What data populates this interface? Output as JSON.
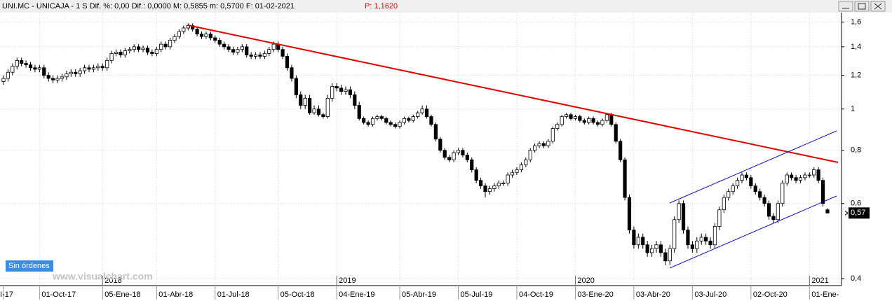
{
  "chart_data": {
    "type": "candlestick",
    "title": "UNI.MC - UNICAJA -  1 S  Dif. %: 0,00  Dif.: 0,0000  M: 0,5855  m: 0,5700  F: 01-02-2021",
    "price_text": "P: 1,1620",
    "button": "Sin órdenes",
    "watermark": "www.visualchart.com",
    "log_scale": true,
    "grid": true,
    "up_color": "#ffffff",
    "down_color": "#000000",
    "trend_color": "#e00000",
    "channel_color": "#1010c0",
    "ylim": [
      0.385,
      1.71
    ],
    "yticks": [
      {
        "value": 0.4,
        "label": "0,4"
      },
      {
        "value": 0.6,
        "label": "0,6"
      },
      {
        "value": 0.8,
        "label": "0,8"
      },
      1,
      {
        "value": 1.2,
        "label": "1,2"
      },
      {
        "value": 1.4,
        "label": "1,4"
      },
      {
        "value": 1.6,
        "label": "1,6"
      }
    ],
    "last_price": {
      "value": 0.57,
      "label": "0,57"
    },
    "categories": [
      "I-17",
      null,
      null,
      null,
      null,
      null,
      null,
      null,
      "01-Oct-17",
      null,
      null,
      null,
      null,
      null,
      null,
      null,
      null,
      null,
      null,
      null,
      null,
      null,
      "05-Ene-18",
      null,
      null,
      null,
      null,
      null,
      null,
      null,
      null,
      null,
      null,
      null,
      "01-Abr-18",
      null,
      null,
      null,
      null,
      null,
      null,
      null,
      null,
      null,
      null,
      null,
      null,
      "01-Jul-18",
      null,
      null,
      null,
      null,
      null,
      null,
      null,
      null,
      null,
      null,
      null,
      null,
      null,
      "05-Oct-18",
      null,
      null,
      null,
      null,
      null,
      null,
      null,
      null,
      null,
      null,
      null,
      null,
      "04-Ene-19",
      null,
      null,
      null,
      null,
      null,
      null,
      null,
      null,
      null,
      null,
      null,
      null,
      null,
      "05-Abr-19",
      null,
      null,
      null,
      null,
      null,
      null,
      null,
      null,
      null,
      null,
      null,
      null,
      "05-Jul-19",
      null,
      null,
      null,
      null,
      null,
      null,
      null,
      null,
      null,
      null,
      null,
      null,
      "04-Oct-19",
      null,
      null,
      null,
      null,
      null,
      null,
      null,
      null,
      null,
      null,
      null,
      null,
      "03-Ene-20",
      null,
      null,
      null,
      null,
      null,
      null,
      null,
      null,
      null,
      null,
      null,
      null,
      "03-Abr-20",
      null,
      null,
      null,
      null,
      null,
      null,
      null,
      null,
      null,
      null,
      null,
      null,
      "03-Jul-20",
      null,
      null,
      null,
      null,
      null,
      null,
      null,
      null,
      null,
      null,
      null,
      null,
      "02-Oct-20",
      null,
      null,
      null,
      null,
      null,
      null,
      null,
      null,
      null,
      null,
      null,
      null,
      "01-Ene-",
      null,
      null,
      null,
      null
    ],
    "years": [
      null,
      null,
      null,
      null,
      null,
      null,
      null,
      null,
      null,
      null,
      null,
      null,
      null,
      null,
      null,
      null,
      null,
      null,
      null,
      null,
      null,
      null,
      "2018",
      null,
      null,
      null,
      null,
      null,
      null,
      null,
      null,
      null,
      null,
      null,
      null,
      null,
      null,
      null,
      null,
      null,
      null,
      null,
      null,
      null,
      null,
      null,
      null,
      null,
      null,
      null,
      null,
      null,
      null,
      null,
      null,
      null,
      null,
      null,
      null,
      null,
      null,
      null,
      null,
      null,
      null,
      null,
      null,
      null,
      null,
      null,
      null,
      null,
      null,
      null,
      "2019",
      null,
      null,
      null,
      null,
      null,
      null,
      null,
      null,
      null,
      null,
      null,
      null,
      null,
      null,
      null,
      null,
      null,
      null,
      null,
      null,
      null,
      null,
      null,
      null,
      null,
      null,
      null,
      null,
      null,
      null,
      null,
      null,
      null,
      null,
      null,
      null,
      null,
      null,
      null,
      null,
      null,
      null,
      null,
      null,
      null,
      null,
      null,
      null,
      null,
      null,
      null,
      null,
      "2020",
      null,
      null,
      null,
      null,
      null,
      null,
      null,
      null,
      null,
      null,
      null,
      null,
      null,
      null,
      null,
      null,
      null,
      null,
      null,
      null,
      null,
      null,
      null,
      null,
      null,
      null,
      null,
      null,
      null,
      null,
      null,
      null,
      null,
      null,
      null,
      null,
      null,
      null,
      null,
      null,
      null,
      null,
      null,
      null,
      null,
      null,
      null,
      null,
      null,
      null,
      null,
      "2021",
      null,
      null,
      null,
      null
    ],
    "open": [
      1.16,
      1.18,
      1.22,
      1.26,
      1.3,
      1.28,
      1.27,
      1.25,
      1.24,
      1.25,
      1.2,
      1.18,
      1.17,
      1.18,
      1.19,
      1.21,
      1.22,
      1.21,
      1.23,
      1.25,
      1.24,
      1.25,
      1.26,
      1.25,
      1.3,
      1.35,
      1.36,
      1.34,
      1.37,
      1.38,
      1.4,
      1.38,
      1.39,
      1.36,
      1.35,
      1.38,
      1.42,
      1.4,
      1.45,
      1.48,
      1.52,
      1.55,
      1.57,
      1.54,
      1.5,
      1.48,
      1.5,
      1.47,
      1.45,
      1.42,
      1.4,
      1.38,
      1.36,
      1.38,
      1.4,
      1.34,
      1.33,
      1.34,
      1.33,
      1.35,
      1.38,
      1.42,
      1.38,
      1.33,
      1.25,
      1.18,
      1.08,
      1.02,
      1.06,
      0.98,
      1.0,
      0.97,
      0.96,
      1.06,
      1.13,
      1.12,
      1.1,
      1.11,
      1.08,
      1.02,
      0.95,
      0.93,
      0.92,
      0.95,
      0.96,
      0.95,
      0.93,
      0.92,
      0.91,
      0.93,
      0.95,
      0.94,
      0.96,
      0.98,
      1.0,
      0.96,
      0.92,
      0.85,
      0.8,
      0.77,
      0.76,
      0.79,
      0.8,
      0.78,
      0.76,
      0.72,
      0.68,
      0.66,
      0.64,
      0.65,
      0.66,
      0.67,
      0.67,
      0.7,
      0.71,
      0.72,
      0.74,
      0.76,
      0.8,
      0.82,
      0.83,
      0.82,
      0.84,
      0.9,
      0.92,
      0.96,
      0.97,
      0.95,
      0.96,
      0.94,
      0.93,
      0.95,
      0.93,
      0.92,
      0.94,
      0.97,
      0.92,
      0.84,
      0.76,
      0.62,
      0.52,
      0.48,
      0.5,
      0.48,
      0.46,
      0.47,
      0.48,
      0.46,
      0.44,
      0.47,
      0.55,
      0.6,
      0.52,
      0.48,
      0.47,
      0.49,
      0.5,
      0.49,
      0.48,
      0.53,
      0.58,
      0.62,
      0.64,
      0.66,
      0.68,
      0.7,
      0.69,
      0.66,
      0.64,
      0.62,
      0.6,
      0.56,
      0.55,
      0.6,
      0.67,
      0.7,
      0.69,
      0.68,
      0.69,
      0.7,
      0.7,
      0.72,
      0.68,
      0.58
    ],
    "high": [
      1.2,
      1.24,
      1.28,
      1.32,
      1.32,
      1.3,
      1.29,
      1.27,
      1.27,
      1.27,
      1.22,
      1.2,
      1.2,
      1.21,
      1.23,
      1.24,
      1.24,
      1.25,
      1.27,
      1.27,
      1.27,
      1.28,
      1.28,
      1.32,
      1.37,
      1.38,
      1.38,
      1.39,
      1.4,
      1.42,
      1.42,
      1.41,
      1.41,
      1.38,
      1.4,
      1.44,
      1.44,
      1.47,
      1.5,
      1.54,
      1.57,
      1.59,
      1.59,
      1.56,
      1.52,
      1.52,
      1.52,
      1.49,
      1.47,
      1.44,
      1.42,
      1.4,
      1.4,
      1.42,
      1.42,
      1.36,
      1.36,
      1.36,
      1.37,
      1.4,
      1.44,
      1.44,
      1.4,
      1.35,
      1.27,
      1.2,
      1.1,
      1.08,
      1.08,
      1.02,
      1.02,
      0.98,
      1.08,
      1.15,
      1.15,
      1.14,
      1.13,
      1.13,
      1.1,
      1.04,
      0.96,
      0.94,
      0.96,
      0.97,
      0.97,
      0.96,
      0.94,
      0.93,
      0.94,
      0.96,
      0.96,
      0.97,
      0.99,
      1.02,
      1.02,
      0.97,
      0.93,
      0.86,
      0.81,
      0.78,
      0.8,
      0.81,
      0.81,
      0.79,
      0.77,
      0.73,
      0.69,
      0.67,
      0.66,
      0.67,
      0.68,
      0.68,
      0.71,
      0.72,
      0.73,
      0.75,
      0.77,
      0.81,
      0.83,
      0.84,
      0.84,
      0.85,
      0.91,
      0.93,
      0.97,
      0.98,
      0.98,
      0.97,
      0.97,
      0.95,
      0.96,
      0.96,
      0.94,
      0.95,
      0.98,
      0.98,
      0.93,
      0.85,
      0.77,
      0.63,
      0.53,
      0.51,
      0.51,
      0.49,
      0.48,
      0.49,
      0.49,
      0.47,
      0.48,
      0.56,
      0.61,
      0.61,
      0.53,
      0.49,
      0.5,
      0.51,
      0.51,
      0.5,
      0.54,
      0.59,
      0.63,
      0.65,
      0.67,
      0.69,
      0.71,
      0.71,
      0.7,
      0.67,
      0.65,
      0.63,
      0.61,
      0.57,
      0.61,
      0.68,
      0.71,
      0.71,
      0.7,
      0.7,
      0.71,
      0.71,
      0.73,
      0.73,
      0.69,
      0.5855
    ],
    "low": [
      1.14,
      1.16,
      1.2,
      1.24,
      1.26,
      1.25,
      1.23,
      1.22,
      1.22,
      1.18,
      1.16,
      1.15,
      1.15,
      1.16,
      1.17,
      1.19,
      1.19,
      1.19,
      1.21,
      1.22,
      1.22,
      1.23,
      1.23,
      1.23,
      1.28,
      1.33,
      1.32,
      1.32,
      1.35,
      1.36,
      1.36,
      1.36,
      1.34,
      1.33,
      1.33,
      1.36,
      1.38,
      1.38,
      1.43,
      1.46,
      1.5,
      1.53,
      1.52,
      1.48,
      1.46,
      1.46,
      1.45,
      1.43,
      1.4,
      1.38,
      1.36,
      1.34,
      1.34,
      1.36,
      1.32,
      1.31,
      1.31,
      1.31,
      1.31,
      1.33,
      1.36,
      1.36,
      1.31,
      1.23,
      1.16,
      1.06,
      1.0,
      1.0,
      0.97,
      0.97,
      0.96,
      0.95,
      0.95,
      1.04,
      1.1,
      1.08,
      1.08,
      1.06,
      1.0,
      0.94,
      0.92,
      0.91,
      0.91,
      0.94,
      0.94,
      0.92,
      0.91,
      0.9,
      0.9,
      0.92,
      0.93,
      0.93,
      0.95,
      0.97,
      0.95,
      0.91,
      0.84,
      0.79,
      0.76,
      0.75,
      0.75,
      0.78,
      0.77,
      0.75,
      0.71,
      0.67,
      0.65,
      0.62,
      0.63,
      0.64,
      0.65,
      0.66,
      0.66,
      0.69,
      0.7,
      0.71,
      0.73,
      0.75,
      0.79,
      0.81,
      0.81,
      0.81,
      0.83,
      0.89,
      0.91,
      0.95,
      0.94,
      0.94,
      0.93,
      0.92,
      0.92,
      0.92,
      0.91,
      0.91,
      0.93,
      0.91,
      0.83,
      0.75,
      0.61,
      0.51,
      0.47,
      0.47,
      0.47,
      0.45,
      0.45,
      0.46,
      0.45,
      0.43,
      0.43,
      0.46,
      0.54,
      0.51,
      0.47,
      0.46,
      0.46,
      0.48,
      0.48,
      0.47,
      0.47,
      0.52,
      0.57,
      0.61,
      0.63,
      0.65,
      0.67,
      0.68,
      0.65,
      0.63,
      0.61,
      0.59,
      0.55,
      0.54,
      0.54,
      0.59,
      0.66,
      0.68,
      0.67,
      0.67,
      0.68,
      0.69,
      0.69,
      0.67,
      0.59,
      0.57
    ],
    "close": [
      1.18,
      1.22,
      1.26,
      1.3,
      1.28,
      1.27,
      1.25,
      1.24,
      1.25,
      1.2,
      1.18,
      1.17,
      1.18,
      1.19,
      1.21,
      1.22,
      1.21,
      1.23,
      1.25,
      1.24,
      1.25,
      1.26,
      1.25,
      1.3,
      1.35,
      1.36,
      1.34,
      1.37,
      1.38,
      1.4,
      1.38,
      1.39,
      1.36,
      1.35,
      1.38,
      1.42,
      1.4,
      1.45,
      1.48,
      1.52,
      1.55,
      1.57,
      1.54,
      1.5,
      1.48,
      1.5,
      1.47,
      1.45,
      1.42,
      1.4,
      1.38,
      1.36,
      1.38,
      1.4,
      1.34,
      1.33,
      1.34,
      1.33,
      1.35,
      1.38,
      1.42,
      1.38,
      1.33,
      1.25,
      1.18,
      1.08,
      1.02,
      1.06,
      0.98,
      1.0,
      0.97,
      0.96,
      1.06,
      1.13,
      1.12,
      1.1,
      1.11,
      1.08,
      1.02,
      0.95,
      0.93,
      0.92,
      0.95,
      0.96,
      0.95,
      0.93,
      0.92,
      0.91,
      0.93,
      0.95,
      0.94,
      0.96,
      0.98,
      1.0,
      0.96,
      0.92,
      0.85,
      0.8,
      0.77,
      0.76,
      0.79,
      0.8,
      0.78,
      0.76,
      0.72,
      0.68,
      0.66,
      0.64,
      0.65,
      0.66,
      0.67,
      0.67,
      0.7,
      0.71,
      0.72,
      0.74,
      0.76,
      0.8,
      0.82,
      0.83,
      0.82,
      0.84,
      0.9,
      0.92,
      0.96,
      0.97,
      0.95,
      0.96,
      0.94,
      0.93,
      0.95,
      0.93,
      0.92,
      0.94,
      0.97,
      0.92,
      0.84,
      0.76,
      0.62,
      0.52,
      0.48,
      0.5,
      0.48,
      0.46,
      0.47,
      0.48,
      0.46,
      0.44,
      0.47,
      0.55,
      0.6,
      0.52,
      0.48,
      0.47,
      0.49,
      0.5,
      0.49,
      0.48,
      0.53,
      0.58,
      0.62,
      0.64,
      0.66,
      0.68,
      0.7,
      0.69,
      0.66,
      0.64,
      0.62,
      0.6,
      0.56,
      0.55,
      0.6,
      0.67,
      0.7,
      0.69,
      0.68,
      0.69,
      0.7,
      0.7,
      0.72,
      0.68,
      0.6,
      0.57
    ]
  }
}
